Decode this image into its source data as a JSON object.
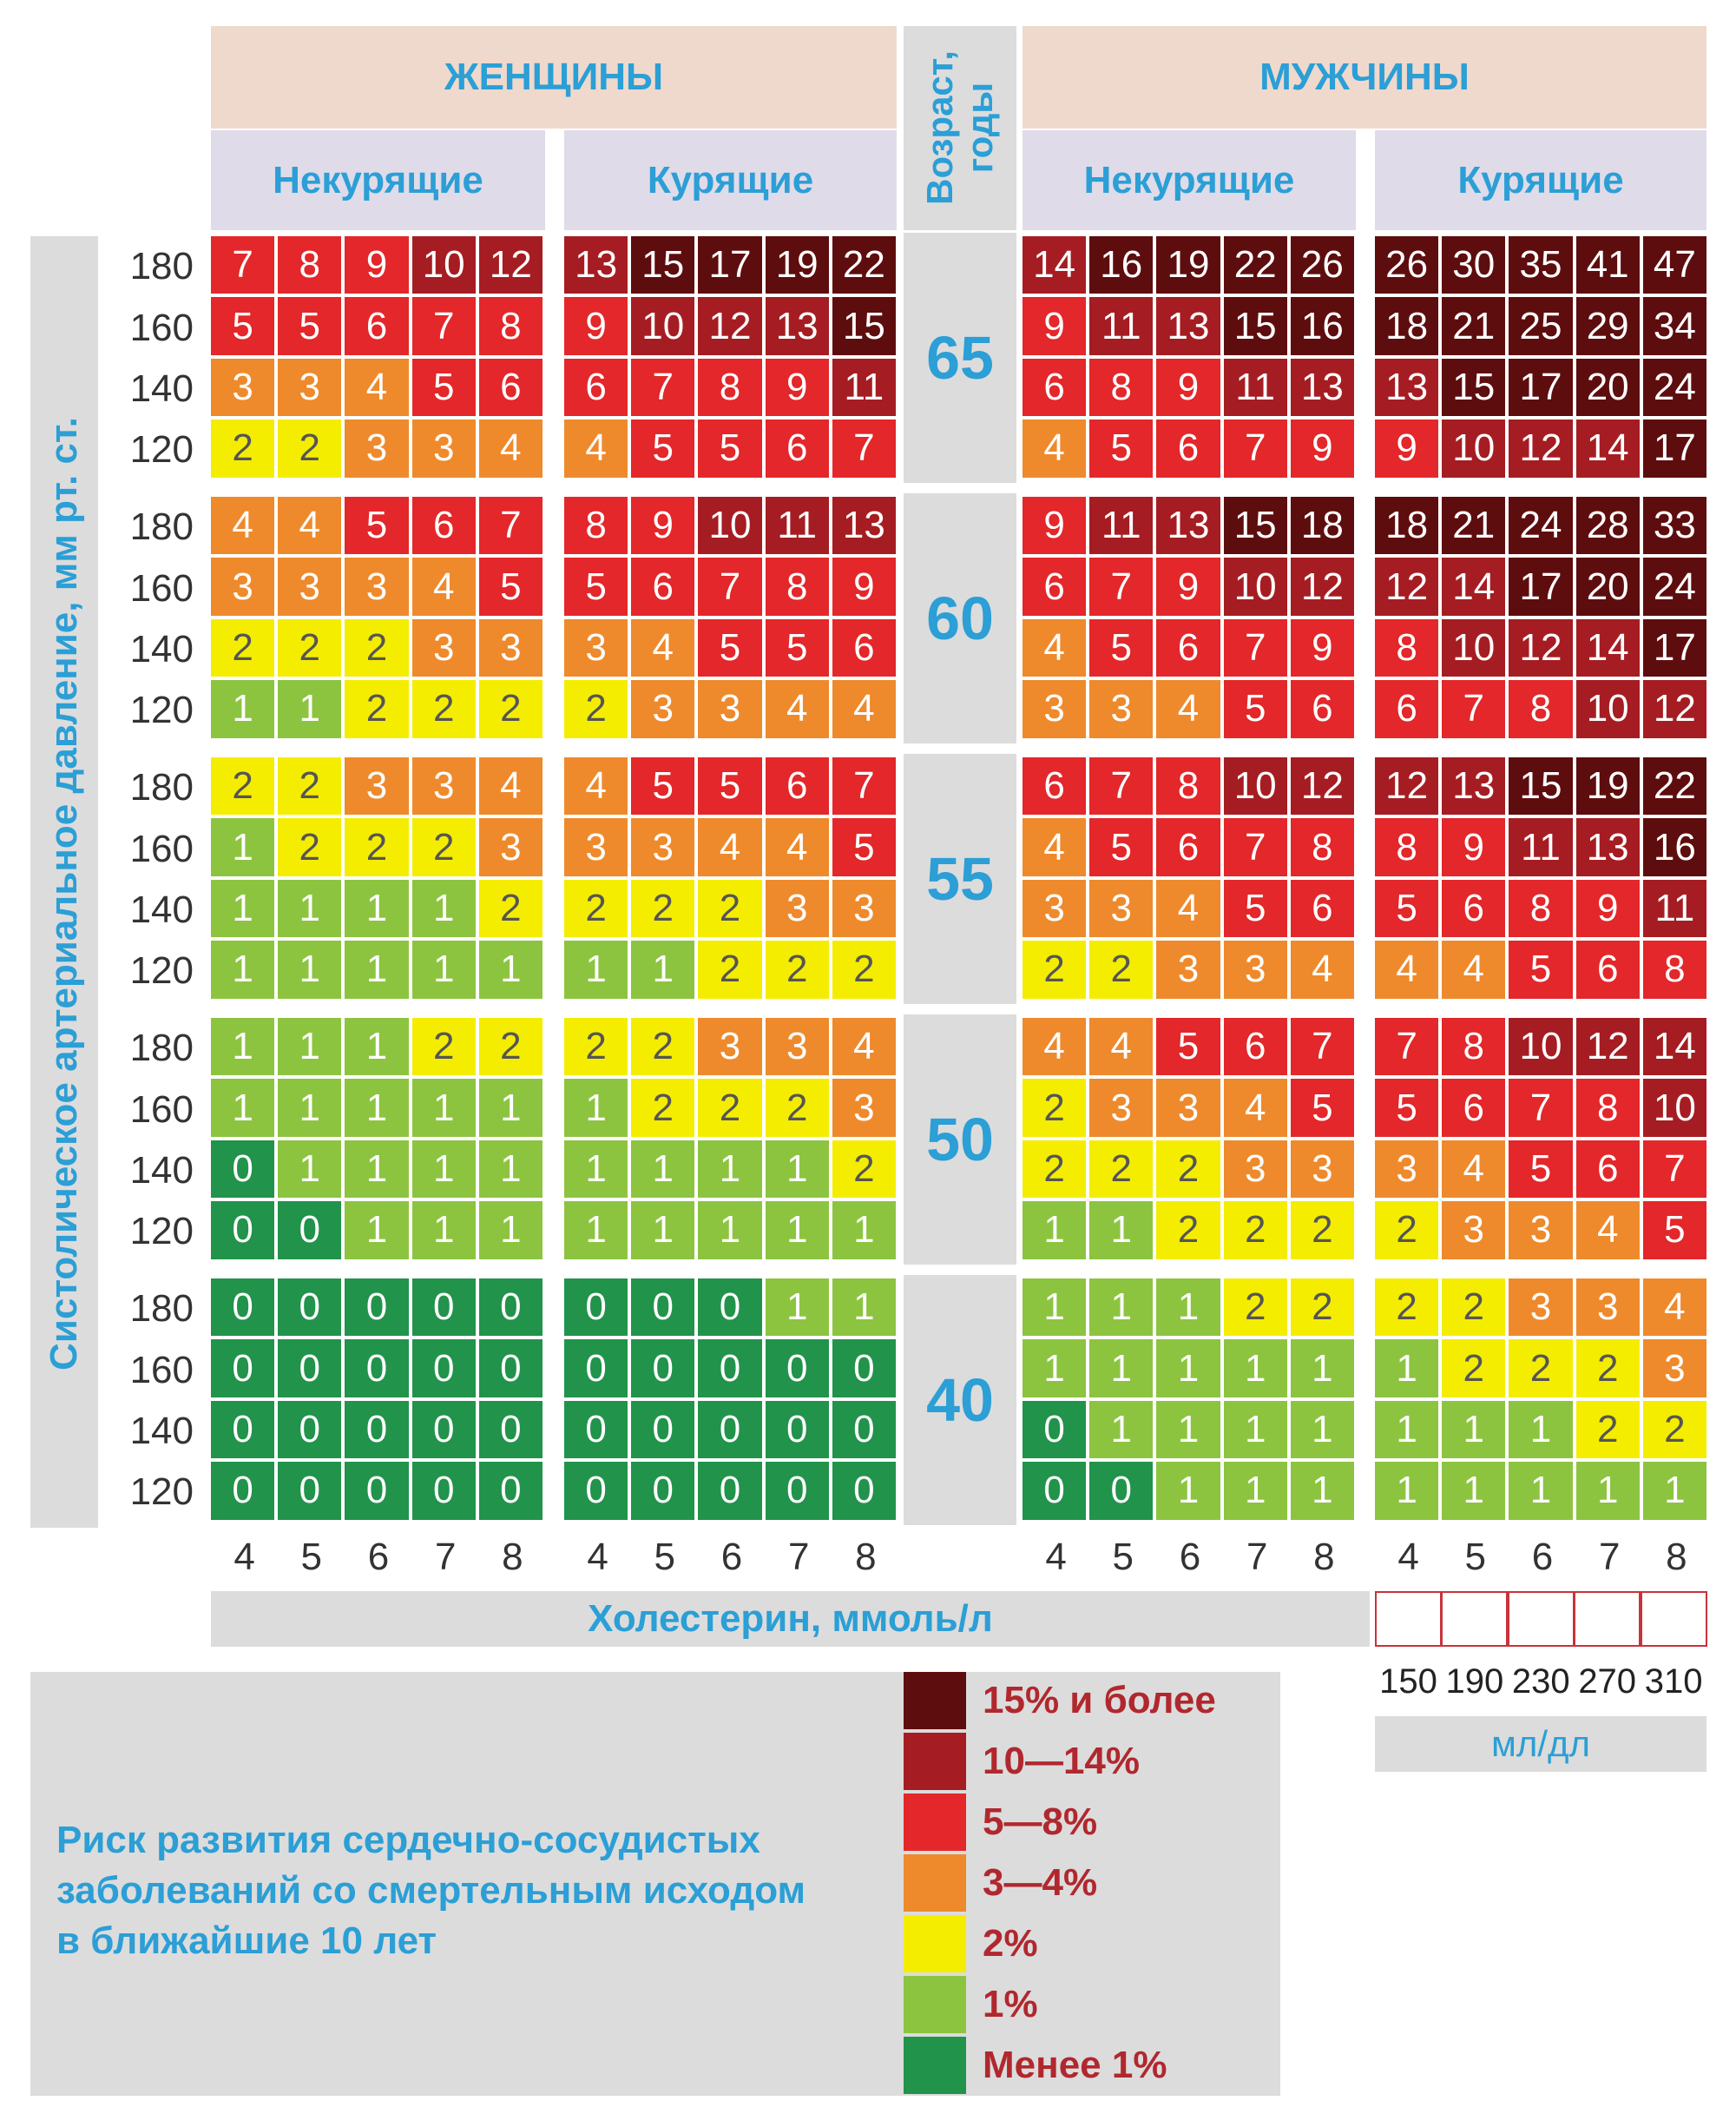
{
  "headers": {
    "women": "ЖЕНЩИНЫ",
    "men": "МУЖЧИНЫ",
    "age": [
      "Возраст,",
      "годы"
    ],
    "nonsmoking": "Некурящие",
    "smoking": "Курящие"
  },
  "y_axis_label": "Систолическое артериальное давление, мм рт. ст.",
  "x_axis_label": "Холестерин, ммоль/л",
  "mgdl": {
    "values": [
      "150",
      "190",
      "230",
      "270",
      "310"
    ],
    "unit": "мл/дл"
  },
  "risk_title": [
    "Риск развития сердечно-сосудистых",
    "заболеваний со смертельным исходом",
    "в ближайшие 10 лет"
  ],
  "legend": [
    {
      "label": "15% и более",
      "color": "#5e0d0e"
    },
    {
      "label": "10—14%",
      "color": "#a51d22"
    },
    {
      "label": "5—8%",
      "color": "#e3272a"
    },
    {
      "label": "3—4%",
      "color": "#ee8a2c"
    },
    {
      "label": "2%",
      "color": "#f5ed00"
    },
    {
      "label": "1%",
      "color": "#8cc440"
    },
    {
      "label": "Менее 1%",
      "color": "#21934b"
    }
  ],
  "chart_data": {
    "type": "heatmap",
    "cholesterol_mmol": [
      "4",
      "5",
      "6",
      "7",
      "8"
    ],
    "systolic_bp": [
      "180",
      "160",
      "140",
      "120"
    ],
    "panels": [
      "women_nonsmoking",
      "women_smoking",
      "men_nonsmoking",
      "men_smoking"
    ],
    "ages": [
      {
        "age": "65",
        "women_nonsmoking": [
          [
            7,
            8,
            9,
            10,
            12
          ],
          [
            5,
            5,
            6,
            7,
            8
          ],
          [
            3,
            3,
            4,
            5,
            6
          ],
          [
            2,
            2,
            3,
            3,
            4
          ]
        ],
        "women_smoking": [
          [
            13,
            15,
            17,
            19,
            22
          ],
          [
            9,
            10,
            12,
            13,
            15
          ],
          [
            6,
            7,
            8,
            9,
            11
          ],
          [
            4,
            5,
            5,
            6,
            7
          ]
        ],
        "men_nonsmoking": [
          [
            14,
            16,
            19,
            22,
            26
          ],
          [
            9,
            11,
            13,
            15,
            16
          ],
          [
            6,
            8,
            9,
            11,
            13
          ],
          [
            4,
            5,
            6,
            7,
            9
          ]
        ],
        "men_smoking": [
          [
            26,
            30,
            35,
            41,
            47
          ],
          [
            18,
            21,
            25,
            29,
            34
          ],
          [
            13,
            15,
            17,
            20,
            24
          ],
          [
            9,
            10,
            12,
            14,
            17
          ]
        ]
      },
      {
        "age": "60",
        "women_nonsmoking": [
          [
            4,
            4,
            5,
            6,
            7
          ],
          [
            3,
            3,
            3,
            4,
            5
          ],
          [
            2,
            2,
            2,
            3,
            3
          ],
          [
            1,
            1,
            2,
            2,
            2
          ]
        ],
        "women_smoking": [
          [
            8,
            9,
            10,
            11,
            13
          ],
          [
            5,
            6,
            7,
            8,
            9
          ],
          [
            3,
            4,
            5,
            5,
            6
          ],
          [
            2,
            3,
            3,
            4,
            4
          ]
        ],
        "men_nonsmoking": [
          [
            9,
            11,
            13,
            15,
            18
          ],
          [
            6,
            7,
            9,
            10,
            12
          ],
          [
            4,
            5,
            6,
            7,
            9
          ],
          [
            3,
            3,
            4,
            5,
            6
          ]
        ],
        "men_smoking": [
          [
            18,
            21,
            24,
            28,
            33
          ],
          [
            12,
            14,
            17,
            20,
            24
          ],
          [
            8,
            10,
            12,
            14,
            17
          ],
          [
            6,
            7,
            8,
            10,
            12
          ]
        ]
      },
      {
        "age": "55",
        "women_nonsmoking": [
          [
            2,
            2,
            3,
            3,
            4
          ],
          [
            1,
            2,
            2,
            2,
            3
          ],
          [
            1,
            1,
            1,
            1,
            2
          ],
          [
            1,
            1,
            1,
            1,
            1
          ]
        ],
        "women_smoking": [
          [
            4,
            5,
            5,
            6,
            7
          ],
          [
            3,
            3,
            4,
            4,
            5
          ],
          [
            2,
            2,
            2,
            3,
            3
          ],
          [
            1,
            1,
            2,
            2,
            2
          ]
        ],
        "men_nonsmoking": [
          [
            6,
            7,
            8,
            10,
            12
          ],
          [
            4,
            5,
            6,
            7,
            8
          ],
          [
            3,
            3,
            4,
            5,
            6
          ],
          [
            2,
            2,
            3,
            3,
            4
          ]
        ],
        "men_smoking": [
          [
            12,
            13,
            15,
            19,
            22
          ],
          [
            8,
            9,
            11,
            13,
            16
          ],
          [
            5,
            6,
            8,
            9,
            11
          ],
          [
            4,
            4,
            5,
            6,
            8
          ]
        ]
      },
      {
        "age": "50",
        "women_nonsmoking": [
          [
            1,
            1,
            1,
            2,
            2
          ],
          [
            1,
            1,
            1,
            1,
            1
          ],
          [
            0,
            1,
            1,
            1,
            1
          ],
          [
            0,
            0,
            1,
            1,
            1
          ]
        ],
        "women_smoking": [
          [
            2,
            2,
            3,
            3,
            4
          ],
          [
            1,
            2,
            2,
            2,
            3
          ],
          [
            1,
            1,
            1,
            1,
            2
          ],
          [
            1,
            1,
            1,
            1,
            1
          ]
        ],
        "men_nonsmoking": [
          [
            4,
            4,
            5,
            6,
            7
          ],
          [
            2,
            3,
            3,
            4,
            5
          ],
          [
            2,
            2,
            2,
            3,
            3
          ],
          [
            1,
            1,
            2,
            2,
            2
          ]
        ],
        "men_smoking": [
          [
            7,
            8,
            10,
            12,
            14
          ],
          [
            5,
            6,
            7,
            8,
            10
          ],
          [
            3,
            4,
            5,
            6,
            7
          ],
          [
            2,
            3,
            3,
            4,
            5
          ]
        ]
      },
      {
        "age": "40",
        "women_nonsmoking": [
          [
            0,
            0,
            0,
            0,
            0
          ],
          [
            0,
            0,
            0,
            0,
            0
          ],
          [
            0,
            0,
            0,
            0,
            0
          ],
          [
            0,
            0,
            0,
            0,
            0
          ]
        ],
        "women_smoking": [
          [
            0,
            0,
            0,
            1,
            1
          ],
          [
            0,
            0,
            0,
            0,
            0
          ],
          [
            0,
            0,
            0,
            0,
            0
          ],
          [
            0,
            0,
            0,
            0,
            0
          ]
        ],
        "men_nonsmoking": [
          [
            1,
            1,
            1,
            2,
            2
          ],
          [
            1,
            1,
            1,
            1,
            1
          ],
          [
            0,
            1,
            1,
            1,
            1
          ],
          [
            0,
            0,
            1,
            1,
            1
          ]
        ],
        "men_smoking": [
          [
            2,
            2,
            3,
            3,
            4
          ],
          [
            1,
            2,
            2,
            2,
            3
          ],
          [
            1,
            1,
            1,
            2,
            2
          ],
          [
            1,
            1,
            1,
            1,
            1
          ]
        ]
      }
    ]
  }
}
